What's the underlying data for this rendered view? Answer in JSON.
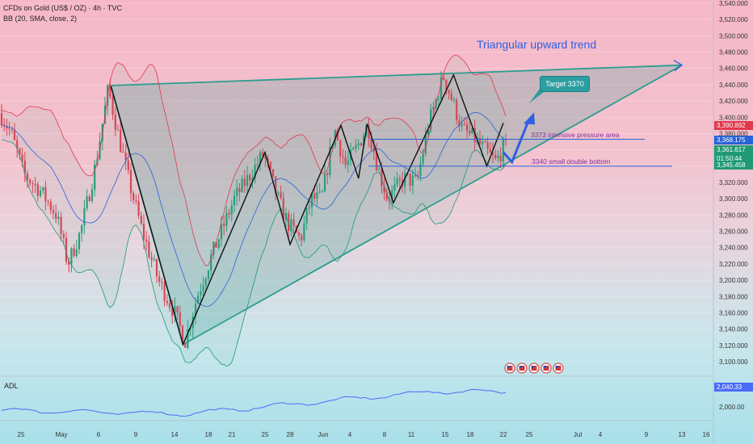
{
  "header": {
    "title": "CFDs on Gold (US$ / OZ) · 4h · TVC",
    "indicator": "BB (20, SMA, close, 2)"
  },
  "price_axis": {
    "ticks": [
      "3,540.000",
      "3,520.000",
      "3,500.000",
      "3,480.000",
      "3,460.000",
      "3,440.000",
      "3,420.000",
      "3,400.000",
      "3,380.000",
      "3,360.000",
      "3,340.000",
      "3,320.000",
      "3,300.000",
      "3,280.000",
      "3,260.000",
      "3,240.000",
      "3,220.000",
      "3,200.000",
      "3,180.000",
      "3,160.000",
      "3,140.000",
      "3,120.000",
      "3,100.000"
    ],
    "tags": [
      {
        "name": "upper-band",
        "text": "3,390.892",
        "color": "#e0394c"
      },
      {
        "name": "basis",
        "text": "3,368.175",
        "color": "#2a62d8"
      },
      {
        "name": "last",
        "text": "3,361.617",
        "color": "#1f9a74"
      },
      {
        "name": "countdown",
        "text": "01:50:44",
        "color": "#1f9a74"
      },
      {
        "name": "lower-band",
        "text": "3,345.458",
        "color": "#1f9a74"
      }
    ]
  },
  "time_axis": {
    "labels": [
      "25",
      "May",
      "6",
      "9",
      "14",
      "18",
      "21",
      "25",
      "28",
      "Jun",
      "4",
      "8",
      "11",
      "15",
      "18",
      "22",
      "25",
      "Jul",
      "4",
      "9",
      "13",
      "16"
    ]
  },
  "annotations": {
    "trend_title": "Triangular upward trend",
    "target": "Target 3370",
    "pressure": "3373 intensive pressure area",
    "double_bottom": "3340 small double bottom"
  },
  "adl": {
    "label": "ADL",
    "value_tag": "2,040.33",
    "axis_tick": "2,000.00"
  },
  "colors": {
    "bull": "#1f9a74",
    "bear": "#e0394c",
    "upper_band": "#e0394c",
    "basis": "#2a62d8",
    "lower_band": "#1f9a74",
    "triangle": "#2a9d8f",
    "zigzag": "#111111",
    "level_line": "#2a62d8",
    "arrow": "#2e5fe0",
    "adl_line": "#4a6cf7"
  },
  "chart_data": {
    "type": "candlestick",
    "title": "CFDs on Gold (US$ / OZ) · 4h · TVC",
    "ylim": [
      3090,
      3550
    ],
    "key_levels": [
      {
        "label": "3373 intensive pressure area",
        "value": 3373
      },
      {
        "label": "3340 small double bottom",
        "value": 3340
      }
    ],
    "triangle": {
      "apex_low": {
        "x": "May 15",
        "y": 3121
      },
      "top_left": {
        "x": "May 7",
        "y": 3439
      },
      "upper_right": {
        "x": "Jul 13",
        "y": 3464
      }
    },
    "zigzag": [
      {
        "x": "May 7",
        "y": 3438
      },
      {
        "x": "May 15",
        "y": 3121
      },
      {
        "x": "May 25",
        "y": 3357
      },
      {
        "x": "May 28",
        "y": 3244
      },
      {
        "x": "Jun 3",
        "y": 3390
      },
      {
        "x": "Jun 5",
        "y": 3325
      },
      {
        "x": "Jun 6",
        "y": 3392
      },
      {
        "x": "Jun 9",
        "y": 3295
      },
      {
        "x": "Jun 16",
        "y": 3452
      },
      {
        "x": "Jun 20",
        "y": 3340
      },
      {
        "x": "Jun 22",
        "y": 3393
      }
    ],
    "projection": [
      {
        "x": "Jun 22",
        "y": 3357
      },
      {
        "x": "Jun 23",
        "y": 3345
      },
      {
        "x": "Jun 25",
        "y": 3398
      }
    ],
    "last_price": 3361.617,
    "adl_last": 2040.33
  }
}
